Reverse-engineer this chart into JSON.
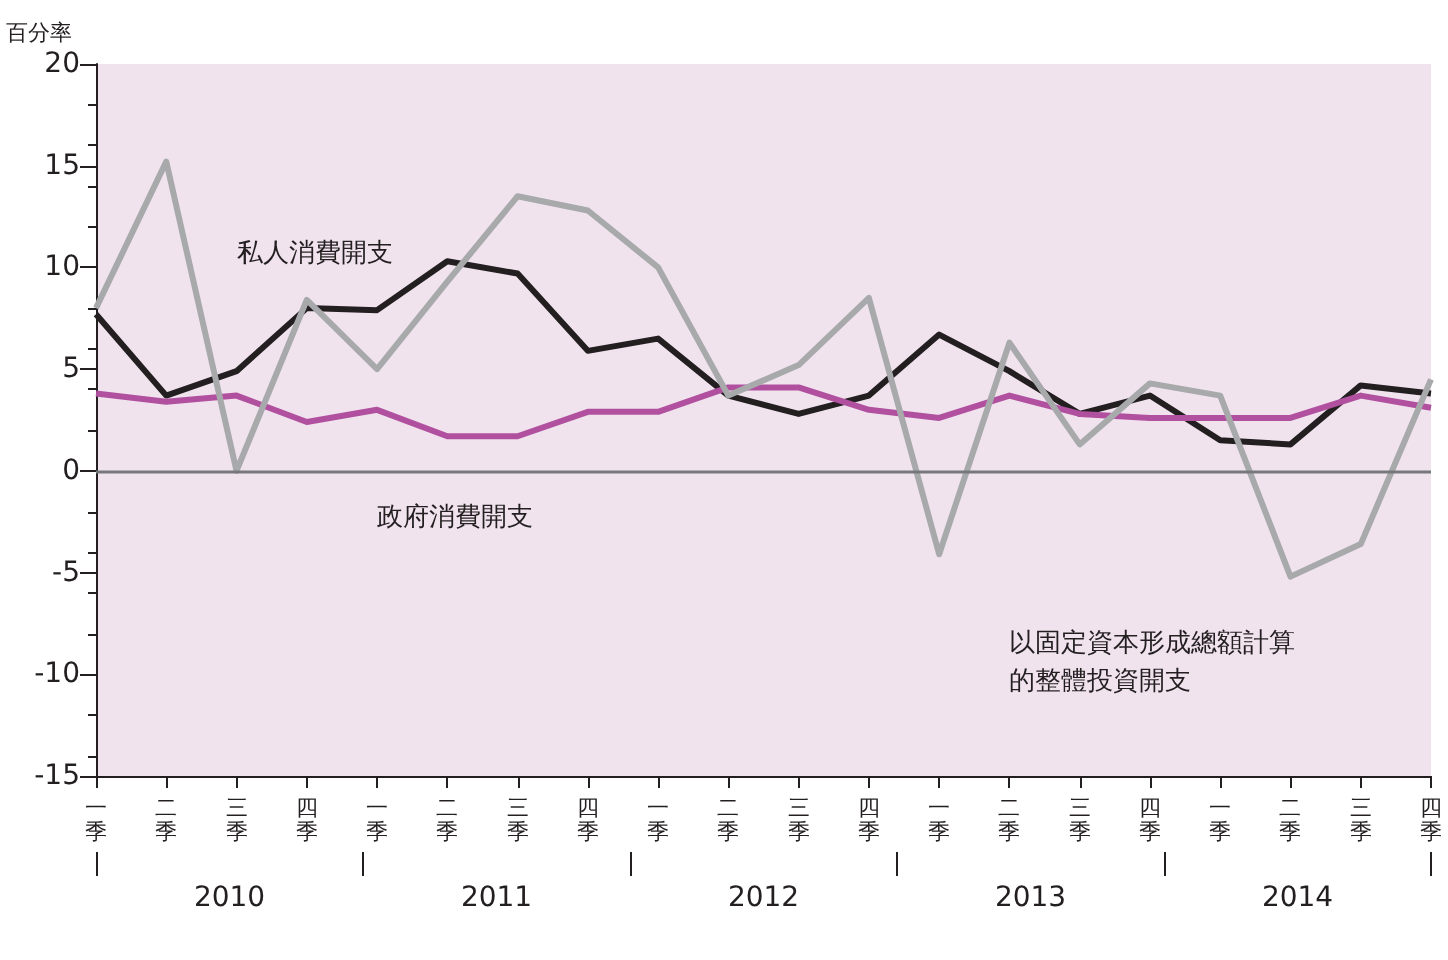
{
  "chart_data": {
    "type": "line",
    "ylabel": "百分率",
    "categories": [
      "一季",
      "二季",
      "三季",
      "四季",
      "一季",
      "二季",
      "三季",
      "四季",
      "一季",
      "二季",
      "三季",
      "四季",
      "一季",
      "二季",
      "三季",
      "四季",
      "一季",
      "二季",
      "三季",
      "四季"
    ],
    "series": [
      {
        "name": "私人消費開支",
        "color": "#231f20",
        "values": [
          7.7,
          3.7,
          4.9,
          8.0,
          7.9,
          10.3,
          9.7,
          5.9,
          6.5,
          3.7,
          2.8,
          3.7,
          6.7,
          4.9,
          2.8,
          3.7,
          1.5,
          1.3,
          4.2,
          3.8
        ]
      },
      {
        "name": "政府消費開支",
        "color": "#b0509f",
        "values": [
          3.8,
          3.4,
          3.7,
          2.4,
          3.0,
          1.7,
          1.7,
          2.9,
          2.9,
          4.1,
          4.1,
          3.0,
          2.6,
          3.7,
          2.8,
          2.6,
          2.6,
          2.6,
          3.7,
          3.1
        ]
      },
      {
        "name": "以固定資本形成總額計算的整體投資開支",
        "color": "#a7a9ab",
        "values": [
          8.0,
          15.2,
          0.0,
          8.4,
          5.0,
          9.3,
          13.5,
          12.8,
          10.0,
          3.7,
          5.2,
          8.5,
          -4.1,
          6.3,
          1.3,
          4.3,
          3.7,
          -5.2,
          -3.6,
          4.5
        ]
      }
    ],
    "annotations": [
      "2010",
      "2011",
      "2012",
      "2013",
      "2014"
    ],
    "ylim": [
      -15,
      20
    ],
    "yticks": [
      -15,
      -10,
      -5,
      0,
      5,
      10,
      15,
      20
    ],
    "ref_lines": [
      {
        "axis": "y",
        "value": 0,
        "color": "#77787b"
      }
    ],
    "grid": false,
    "legend": false,
    "marker": "none",
    "line_style": "solid"
  }
}
